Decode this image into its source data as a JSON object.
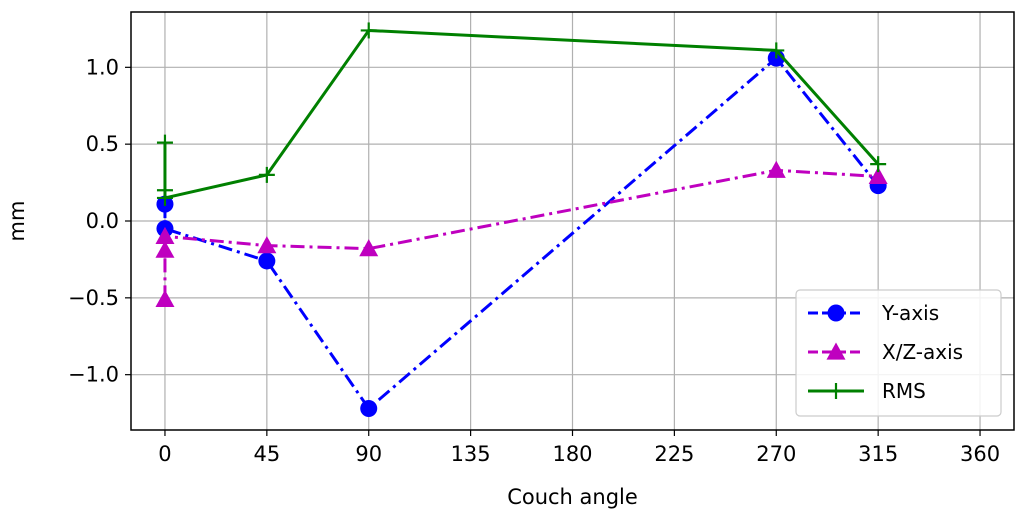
{
  "chart_data": {
    "type": "line",
    "title": "",
    "xlabel": "Couch angle",
    "ylabel": "mm",
    "xlim": [
      -15,
      375
    ],
    "ylim": [
      -1.36,
      1.36
    ],
    "xticks": [
      0,
      45,
      90,
      135,
      180,
      225,
      270,
      315,
      360
    ],
    "xtick_labels": [
      "0",
      "45",
      "90",
      "135",
      "180",
      "225",
      "270",
      "315",
      "360"
    ],
    "yticks": [
      -1.0,
      -0.5,
      0.0,
      0.5,
      1.0
    ],
    "ytick_labels": [
      "−1.0",
      "−0.5",
      "0.0",
      "0.5",
      "1.0"
    ],
    "grid": true,
    "legend_position": "lower-right",
    "series": [
      {
        "name": "Y-axis",
        "color": "#0000ff",
        "marker": "circle",
        "linestyle": "dashdot",
        "x": [
          0,
          0,
          45,
          90,
          270,
          315
        ],
        "y": [
          0.11,
          -0.05,
          -0.26,
          -1.22,
          1.06,
          0.23
        ]
      },
      {
        "name": "X/Z-axis",
        "color": "#bf00bf",
        "marker": "triangle",
        "linestyle": "dashdot",
        "x": [
          0,
          0,
          0,
          45,
          90,
          270,
          315
        ],
        "y": [
          -0.51,
          -0.19,
          -0.1,
          -0.16,
          -0.18,
          0.33,
          0.29
        ]
      },
      {
        "name": "RMS",
        "color": "#008000",
        "marker": "plus",
        "linestyle": "solid",
        "x": [
          0,
          0,
          0,
          45,
          90,
          270,
          315
        ],
        "y": [
          0.51,
          0.2,
          0.15,
          0.3,
          1.24,
          1.11,
          0.37
        ]
      }
    ]
  }
}
